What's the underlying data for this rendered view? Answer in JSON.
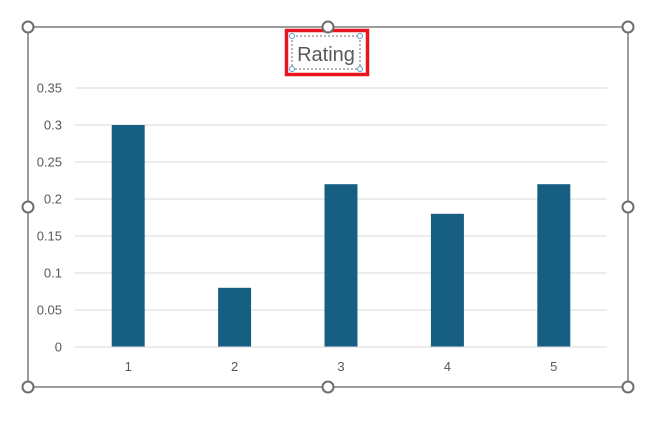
{
  "chart_data": {
    "type": "bar",
    "title": "Rating",
    "categories": [
      "1",
      "2",
      "3",
      "4",
      "5"
    ],
    "values": [
      0.3,
      0.08,
      0.22,
      0.18,
      0.22
    ],
    "ylim": [
      0,
      0.35
    ],
    "yticks": [
      "0",
      "0.05",
      "0.1",
      "0.15",
      "0.2",
      "0.25",
      "0.3",
      "0.35"
    ],
    "grid": true,
    "legend": "none",
    "xlabel": "",
    "ylabel": ""
  },
  "colors": {
    "bar": "#165e82",
    "grid": "#d9d9d9",
    "frame": "#595959",
    "title_highlight": "#e8141e",
    "title_box_handle": "#5b9bd5"
  },
  "selection": {
    "title_selected": true
  }
}
